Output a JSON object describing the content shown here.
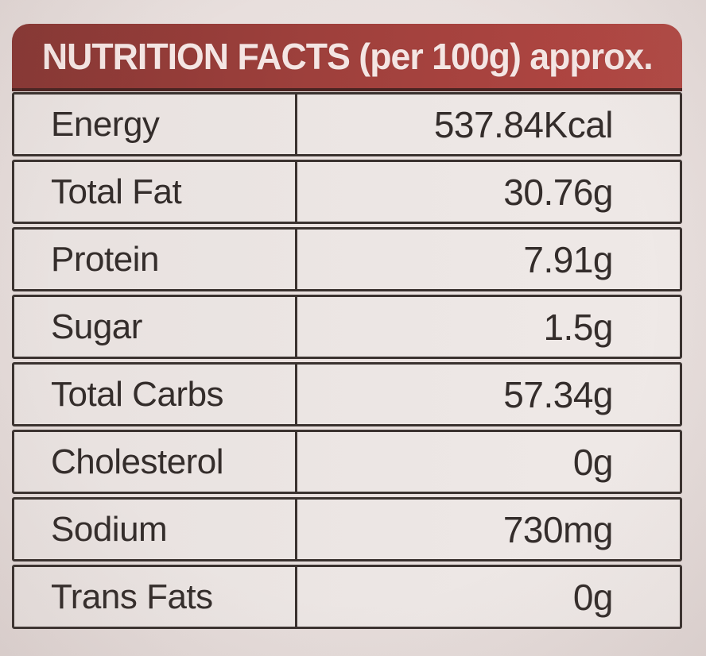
{
  "label": {
    "header": {
      "title": "NUTRITION FACTS (per 100g) approx."
    },
    "table": {
      "rows": [
        {
          "name": "Energy",
          "value": "537.84Kcal"
        },
        {
          "name": "Total Fat",
          "value": "30.76g"
        },
        {
          "name": "Protein",
          "value": "7.91g"
        },
        {
          "name": "Sugar",
          "value": "1.5g"
        },
        {
          "name": "Total Carbs",
          "value": "57.34g"
        },
        {
          "name": "Cholesterol",
          "value": "0g"
        },
        {
          "name": "Sodium",
          "value": "730mg"
        },
        {
          "name": "Trans Fats",
          "value": "0g"
        }
      ]
    },
    "colors": {
      "header_bg": "#9e403c",
      "header_text": "#f4e5e3",
      "cell_bg": "#ece6e4",
      "border": "#3a322f",
      "text": "#342d2b",
      "page_bg": "#e7dedc"
    }
  }
}
